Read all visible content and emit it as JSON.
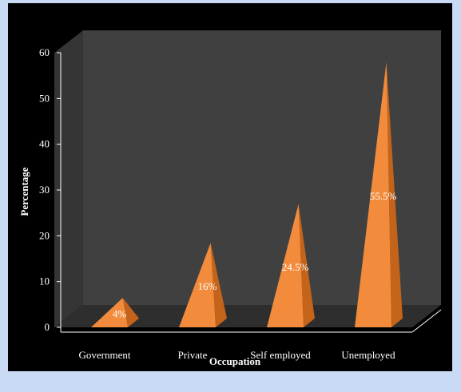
{
  "chart_data": {
    "type": "bar",
    "style": "3d-pyramid",
    "categories": [
      "Government",
      "Private",
      "Self employed",
      "Unemployed"
    ],
    "values": [
      4,
      16,
      24.5,
      55.5
    ],
    "data_labels": [
      "4%",
      "16%",
      "24.5%",
      "55.5%"
    ],
    "xlabel": "Occupation",
    "ylabel": "Percentage",
    "ylim": [
      0,
      60
    ],
    "yticks": [
      "0",
      "10",
      "20",
      "30",
      "40",
      "50",
      "60"
    ],
    "grid": false,
    "legend": "none"
  },
  "colors": {
    "background": "#000000",
    "frame": "#c9daf5",
    "back_wall": "#404040",
    "side_wall": "#353535",
    "floor": "#2e2e2e",
    "bar_front": "#f28c3c",
    "bar_side": "#c4631a",
    "text": "#ffffff"
  }
}
